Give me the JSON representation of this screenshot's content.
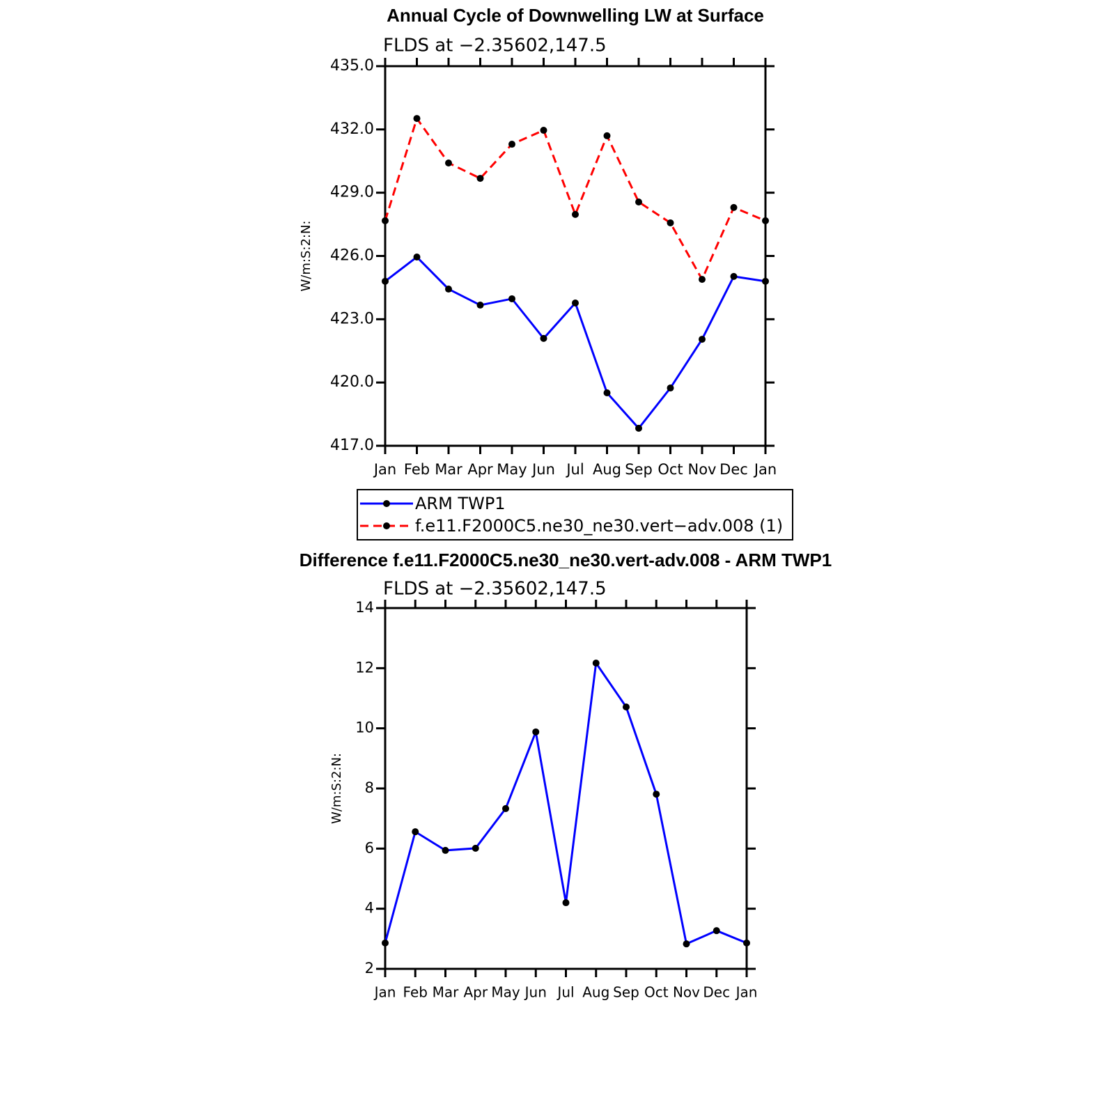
{
  "chart_data": [
    {
      "type": "line",
      "title": "Annual Cycle of Downwelling LW at Surface",
      "subtitle": "FLDS at −2.35602,147.5",
      "y_label": "W/m:S:2:N:",
      "categories": [
        "Jan",
        "Feb",
        "Mar",
        "Apr",
        "May",
        "Jun",
        "Jul",
        "Aug",
        "Sep",
        "Oct",
        "Nov",
        "Dec",
        "Jan"
      ],
      "series": [
        {
          "name": "ARM TWP1",
          "color": "#0000ff",
          "line_style": "solid",
          "values": [
            424.8,
            425.95,
            424.43,
            423.67,
            423.97,
            422.09,
            423.77,
            419.51,
            417.83,
            419.74,
            422.05,
            425.03,
            424.8
          ]
        },
        {
          "name": "f.e11.F2000C5.ne30_ne30.vert−adv.008 (1)",
          "color": "#ff0000",
          "line_style": "dashed",
          "values": [
            427.67,
            432.52,
            430.41,
            429.68,
            431.3,
            431.96,
            427.97,
            431.7,
            428.56,
            427.57,
            424.89,
            428.3,
            427.67
          ]
        }
      ],
      "ylim": [
        417,
        435
      ],
      "yticks": [
        {
          "value": 417,
          "label": "417.0"
        },
        {
          "value": 420,
          "label": "420.0"
        },
        {
          "value": 423,
          "label": "423.0"
        },
        {
          "value": 426,
          "label": "426.0"
        },
        {
          "value": 429,
          "label": "429.0"
        },
        {
          "value": 432,
          "label": "432.0"
        },
        {
          "value": 435,
          "label": "435.0"
        }
      ],
      "marker_color": "#000000",
      "legend": "below"
    },
    {
      "type": "line",
      "title": "Difference f.e11.F2000C5.ne30_ne30.vert-adv.008 - ARM TWP1",
      "subtitle": "FLDS at −2.35602,147.5",
      "y_label": "W/m:S:2:N:",
      "categories": [
        "Jan",
        "Feb",
        "Mar",
        "Apr",
        "May",
        "Jun",
        "Jul",
        "Aug",
        "Sep",
        "Oct",
        "Nov",
        "Dec",
        "Jan"
      ],
      "values": [
        2.86,
        6.56,
        5.94,
        6.01,
        7.33,
        9.88,
        4.2,
        12.17,
        10.71,
        7.81,
        2.83,
        3.27,
        2.86
      ],
      "color": "#0000ff",
      "ylim": [
        2,
        14
      ],
      "yticks": [
        2,
        4,
        6,
        8,
        10,
        12,
        14
      ],
      "marker_color": "#000000"
    }
  ]
}
